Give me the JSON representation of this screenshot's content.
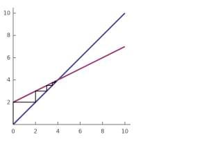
{
  "chart_data": {
    "type": "line",
    "series": [
      {
        "color": "#4b4b9b",
        "x": [
          0,
          10
        ],
        "values": [
          0,
          10
        ]
      },
      {
        "color": "#9b3f77",
        "x": [
          0,
          10
        ],
        "values": [
          2,
          7
        ]
      },
      {
        "color": "#000000",
        "x": [
          0,
          0,
          2,
          2,
          3,
          3,
          3.5,
          3.5,
          3.75,
          3.75,
          3.875
        ],
        "values": [
          0,
          2,
          2,
          3,
          3,
          3.5,
          3.5,
          3.75,
          3.75,
          3.875,
          3.875
        ]
      }
    ],
    "xlim": [
      0,
      10.5
    ],
    "ylim": [
      0,
      10.5
    ],
    "xticks": [
      0,
      2,
      4,
      6,
      8,
      10
    ],
    "yticks": [
      2,
      4,
      6,
      8,
      10
    ]
  }
}
